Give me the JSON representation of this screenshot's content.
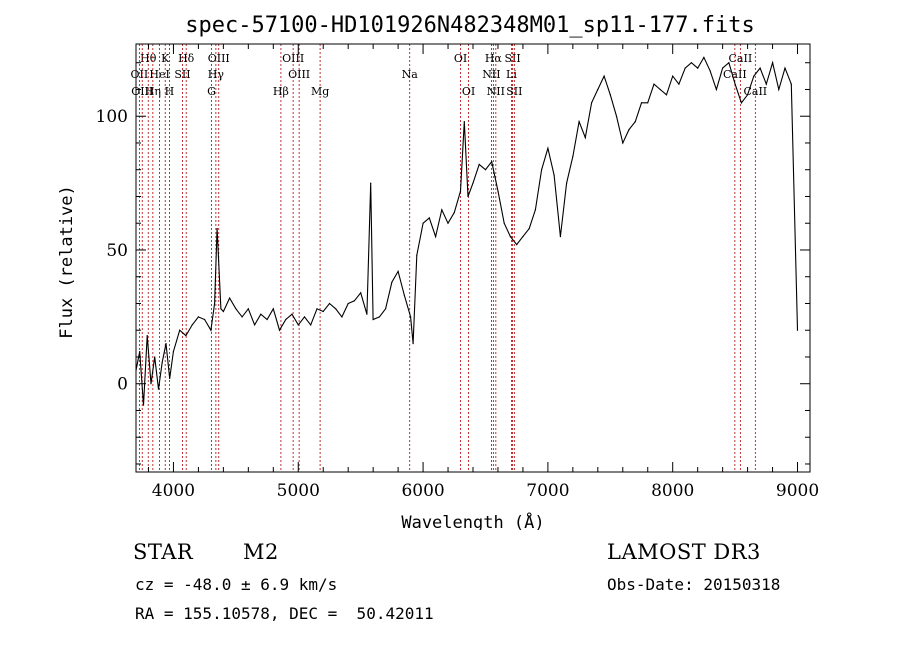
{
  "chart_data": {
    "type": "line",
    "title": "spec-57100-HD101926N482348M01_sp11-177.fits",
    "xlabel": "Wavelength (Å)",
    "ylabel": "Flux (relative)",
    "xlim": [
      3700,
      9100
    ],
    "ylim": [
      -33,
      127
    ],
    "xticks": [
      "4000",
      "5000",
      "6000",
      "7000",
      "8000",
      "9000"
    ],
    "xtick_values": [
      4000,
      5000,
      6000,
      7000,
      8000,
      9000
    ],
    "yticks": [
      "0",
      "50",
      "100"
    ],
    "ytick_values": [
      0,
      50,
      100
    ],
    "grid": false,
    "series": [
      {
        "x": [
          3700,
          3730,
          3760,
          3790,
          3820,
          3850,
          3880,
          3910,
          3940,
          3970,
          4000,
          4050,
          4100,
          4150,
          4200,
          4250,
          4300,
          4330,
          4350,
          4380,
          4400,
          4450,
          4500,
          4550,
          4600,
          4650,
          4700,
          4750,
          4800,
          4850,
          4900,
          4950,
          5000,
          5050,
          5100,
          5150,
          5200,
          5250,
          5300,
          5350,
          5400,
          5450,
          5500,
          5550,
          5580,
          5600,
          5650,
          5700,
          5750,
          5800,
          5850,
          5900,
          5920,
          5950,
          6000,
          6050,
          6100,
          6150,
          6200,
          6250,
          6300,
          6330,
          6360,
          6400,
          6450,
          6500,
          6550,
          6600,
          6650,
          6700,
          6750,
          6800,
          6850,
          6900,
          6950,
          7000,
          7050,
          7100,
          7150,
          7200,
          7250,
          7300,
          7350,
          7400,
          7450,
          7500,
          7550,
          7600,
          7650,
          7700,
          7750,
          7800,
          7850,
          7900,
          7950,
          8000,
          8050,
          8100,
          8150,
          8200,
          8250,
          8300,
          8350,
          8400,
          8450,
          8500,
          8550,
          8600,
          8650,
          8700,
          8750,
          8800,
          8850,
          8900,
          8950,
          9000
        ],
        "y": [
          5,
          12,
          -8,
          18,
          0,
          10,
          -2,
          8,
          15,
          2,
          12,
          20,
          18,
          22,
          25,
          24,
          20,
          30,
          58,
          28,
          27,
          32,
          28,
          25,
          28,
          22,
          26,
          24,
          28,
          20,
          24,
          26,
          22,
          25,
          22,
          28,
          27,
          30,
          28,
          25,
          30,
          31,
          34,
          26,
          75,
          24,
          25,
          28,
          38,
          42,
          33,
          25,
          15,
          48,
          60,
          62,
          55,
          65,
          60,
          64,
          72,
          98,
          70,
          75,
          82,
          80,
          83,
          72,
          60,
          55,
          52,
          55,
          58,
          65,
          80,
          88,
          78,
          55,
          75,
          85,
          98,
          92,
          105,
          110,
          115,
          108,
          100,
          90,
          95,
          98,
          105,
          105,
          112,
          110,
          108,
          115,
          112,
          118,
          120,
          118,
          122,
          117,
          110,
          118,
          120,
          112,
          105,
          108,
          115,
          118,
          112,
          120,
          110,
          118,
          112,
          20
        ]
      }
    ],
    "lines": [
      {
        "label": "Hθ",
        "row": 0,
        "x": 3798
      },
      {
        "label": "K",
        "row": 0,
        "x": 3934
      },
      {
        "label": "Hδ",
        "row": 0,
        "x": 4102
      },
      {
        "label": "OIII",
        "row": 0,
        "x": 4363
      },
      {
        "label": "OIII",
        "row": 0,
        "x": 4959
      },
      {
        "label": "OI",
        "row": 0,
        "x": 6300
      },
      {
        "label": "Hα",
        "row": 0,
        "x": 6563
      },
      {
        "label": "SII",
        "row": 0,
        "x": 6717
      },
      {
        "label": "CaII",
        "row": 0,
        "x": 8542
      },
      {
        "label": "OII",
        "row": 1,
        "x": 3727
      },
      {
        "label": "HeI",
        "row": 1,
        "x": 3889
      },
      {
        "label": "SII",
        "row": 1,
        "x": 4072
      },
      {
        "label": "Hγ",
        "row": 1,
        "x": 4340
      },
      {
        "label": "OIII",
        "row": 1,
        "x": 5007
      },
      {
        "label": "Na",
        "row": 1,
        "x": 5893
      },
      {
        "label": "NII",
        "row": 1,
        "x": 6548
      },
      {
        "label": "Li",
        "row": 1,
        "x": 6708
      },
      {
        "label": "CaII",
        "row": 1,
        "x": 8498
      },
      {
        "label": "OIII",
        "row": 2,
        "x": 3750
      },
      {
        "label": "Hη",
        "row": 2,
        "x": 3835
      },
      {
        "label": "H",
        "row": 2,
        "x": 3968
      },
      {
        "label": "G",
        "row": 2,
        "x": 4305
      },
      {
        "label": "Hβ",
        "row": 2,
        "x": 4861
      },
      {
        "label": "Mg",
        "row": 2,
        "x": 5175
      },
      {
        "label": "OI",
        "row": 2,
        "x": 6364
      },
      {
        "label": "NII",
        "row": 2,
        "x": 6583
      },
      {
        "label": "SII",
        "row": 2,
        "x": 6731
      },
      {
        "label": "CaII",
        "row": 2,
        "x": 8662
      }
    ]
  },
  "info": {
    "object_class": "STAR",
    "subclass": "M2",
    "survey": "LAMOST DR3",
    "cz": "cz = -48.0 ± 6.9 km/s",
    "obs_date": "Obs-Date: 20150318",
    "coords": "RA = 155.10578, DEC =  50.42011"
  }
}
